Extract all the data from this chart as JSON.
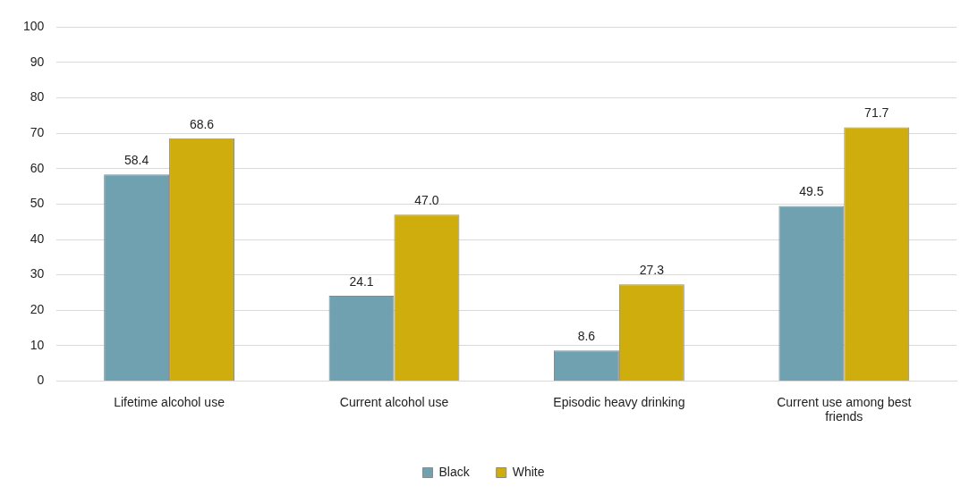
{
  "chart_data": {
    "type": "bar",
    "categories": [
      "Lifetime alcohol use",
      "Current alcohol use",
      "Episodic heavy drinking",
      "Current use among best friends"
    ],
    "series": [
      {
        "name": "Black",
        "color": "#6fa1b0",
        "values": [
          58.4,
          24.1,
          8.6,
          49.5
        ],
        "value_labels": [
          "58.4",
          "24.1",
          "8.6",
          "49.5"
        ]
      },
      {
        "name": "White",
        "color": "#cead0d",
        "values": [
          68.6,
          47.0,
          27.3,
          71.7
        ],
        "value_labels": [
          "68.6",
          "47.0",
          "27.3",
          "71.7"
        ]
      }
    ],
    "ylim": [
      0,
      100
    ],
    "yticks": [
      0,
      10,
      20,
      30,
      40,
      50,
      60,
      70,
      80,
      90,
      100
    ],
    "grid": "y",
    "legend": "bottom"
  }
}
